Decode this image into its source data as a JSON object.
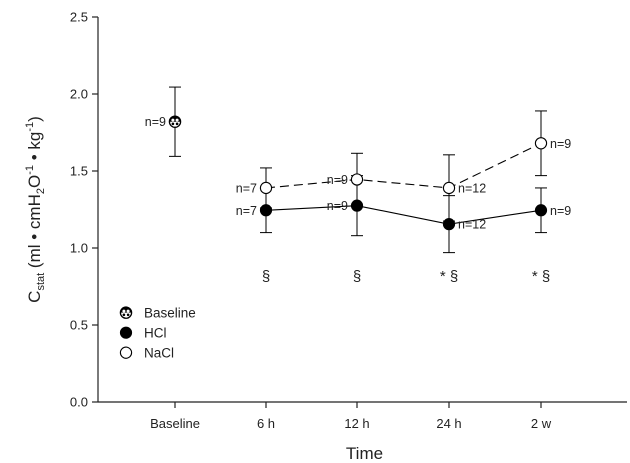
{
  "chart_data": {
    "type": "scatter",
    "xlabel": "Time",
    "ylabel_main": "C",
    "ylabel_sub": "stat",
    "ylabel_units": "(ml • cmH",
    "ylabel_units_sub": "2",
    "ylabel_units_rest": "O",
    "ylabel_exp1": "-1",
    "ylabel_mid": " • kg",
    "ylabel_exp2": "-1",
    "ylabel_close": ")",
    "ylim": [
      0,
      2.5
    ],
    "yticks": [
      "0.0",
      "0.5",
      "1.0",
      "1.5",
      "2.0",
      "2.5"
    ],
    "categories": [
      "Baseline",
      "6 h",
      "12 h",
      "24 h",
      "2 w"
    ],
    "grid": false,
    "legend_position": "bottom-left",
    "series": [
      {
        "name": "Baseline",
        "marker": "baseline",
        "connected": false,
        "points": [
          {
            "x": "Baseline",
            "y": 1.82,
            "err": 0.225,
            "n": "n=9",
            "n_side": "left"
          }
        ]
      },
      {
        "name": "HCl",
        "marker": "filled",
        "connected": true,
        "dash": false,
        "points": [
          {
            "x": "6 h",
            "y": 1.245,
            "err": 0.145,
            "n": "n=7",
            "n_side": "left"
          },
          {
            "x": "12 h",
            "y": 1.275,
            "err": 0.195,
            "n": "n=9",
            "n_side": "left"
          },
          {
            "x": "24 h",
            "y": 1.155,
            "err": 0.185,
            "n": "n=12",
            "n_side": "right"
          },
          {
            "x": "2 w",
            "y": 1.245,
            "err": 0.145,
            "n": "n=9",
            "n_side": "right"
          }
        ]
      },
      {
        "name": "NaCl",
        "marker": "open",
        "connected": true,
        "dash": true,
        "points": [
          {
            "x": "6 h",
            "y": 1.39,
            "err": 0.13,
            "n": "n=7",
            "n_side": "left"
          },
          {
            "x": "12 h",
            "y": 1.445,
            "err": 0.17,
            "n": "n=9",
            "n_side": "left"
          },
          {
            "x": "24 h",
            "y": 1.39,
            "err": 0.215,
            "n": "n=12",
            "n_side": "right"
          },
          {
            "x": "2 w",
            "y": 1.68,
            "err": 0.21,
            "n": "n=9",
            "n_side": "right"
          }
        ]
      }
    ],
    "significance": [
      {
        "x": "6 h",
        "y": 1.0,
        "text": "§"
      },
      {
        "x": "12 h",
        "y": 1.0,
        "text": "§"
      },
      {
        "x": "24 h",
        "y": 1.0,
        "text": "* §"
      },
      {
        "x": "2 w",
        "y": 1.0,
        "text": "* §"
      }
    ]
  }
}
